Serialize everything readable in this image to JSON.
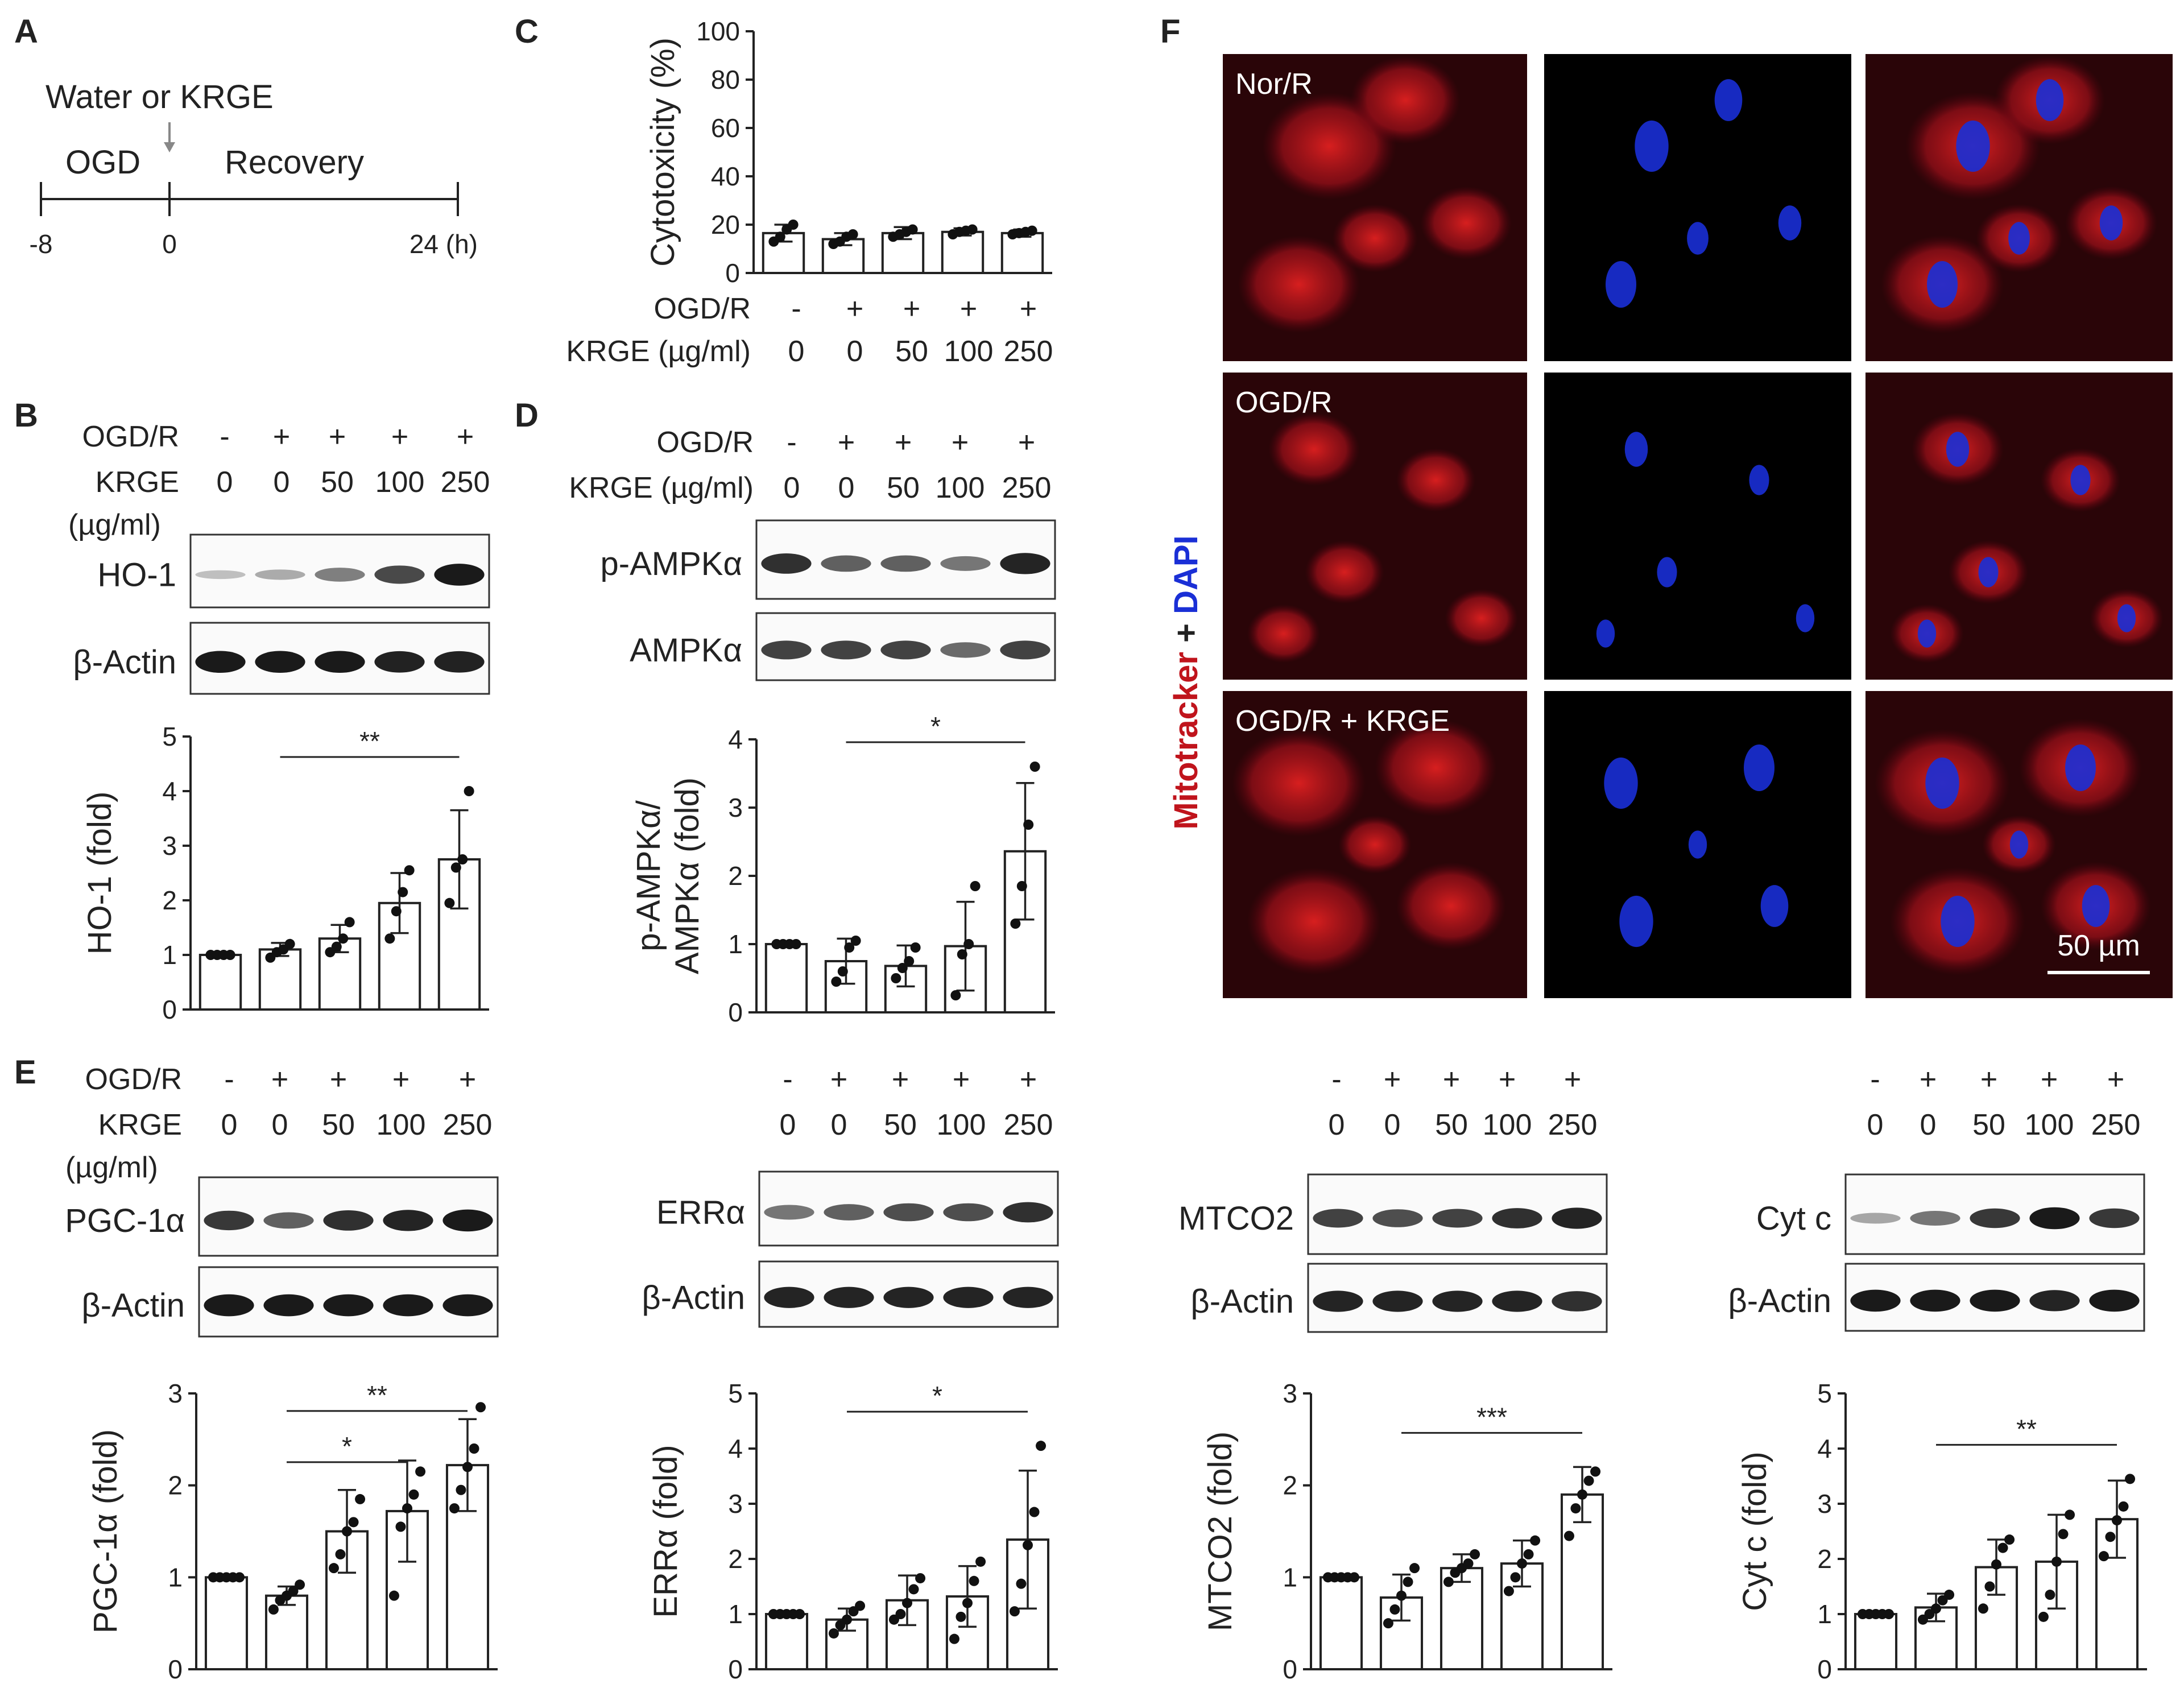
{
  "panel_labels": {
    "A": "A",
    "B": "B",
    "C": "C",
    "D": "D",
    "E": "E",
    "F": "F"
  },
  "timeline": {
    "treatment": "Water or KRGE",
    "phase1": "OGD",
    "phase2": "Recovery",
    "t_start": "-8",
    "t_zero": "0",
    "t_end": "24 (h)"
  },
  "treatment_labels": {
    "ogdr": "OGD/R",
    "krge": "KRGE",
    "unit": "(µg/ml)",
    "krge_with_unit": "KRGE (µg/ml)",
    "krge_wide": "KRGE  (µg/ml)",
    "ogdr_signs": [
      "-",
      "+",
      "+",
      "+",
      "+"
    ],
    "doses": [
      "0",
      "0",
      "50",
      "100",
      "250"
    ]
  },
  "blots": {
    "B": {
      "bands": [
        {
          "name": "HO-1",
          "intensity": [
            0.12,
            0.22,
            0.45,
            0.72,
            0.95
          ]
        },
        {
          "name": "β-Actin",
          "intensity": [
            0.95,
            0.95,
            0.95,
            0.92,
            0.92
          ]
        }
      ]
    },
    "D": {
      "bands": [
        {
          "name": "p-AMPKα",
          "intensity": [
            0.85,
            0.6,
            0.6,
            0.5,
            0.9
          ]
        },
        {
          "name": "AMPKα",
          "intensity": [
            0.75,
            0.75,
            0.75,
            0.55,
            0.75
          ]
        }
      ]
    },
    "E1": {
      "bands": [
        {
          "name": "PGC-1α",
          "intensity": [
            0.8,
            0.6,
            0.85,
            0.9,
            0.95
          ]
        },
        {
          "name": "β-Actin",
          "intensity": [
            0.95,
            0.95,
            0.95,
            0.95,
            0.95
          ]
        }
      ]
    },
    "E2": {
      "bands": [
        {
          "name": "ERRα",
          "intensity": [
            0.5,
            0.6,
            0.7,
            0.7,
            0.85
          ]
        },
        {
          "name": "β-Actin",
          "intensity": [
            0.9,
            0.9,
            0.9,
            0.9,
            0.9
          ]
        }
      ]
    },
    "E3": {
      "bands": [
        {
          "name": "MTCO2",
          "intensity": [
            0.75,
            0.7,
            0.75,
            0.85,
            0.9
          ]
        },
        {
          "name": "β-Actin",
          "intensity": [
            0.9,
            0.9,
            0.9,
            0.9,
            0.85
          ]
        }
      ]
    },
    "E4": {
      "bands": [
        {
          "name": "Cyt c",
          "intensity": [
            0.25,
            0.5,
            0.8,
            0.95,
            0.8
          ]
        },
        {
          "name": "β-Actin",
          "intensity": [
            0.95,
            0.95,
            0.95,
            0.9,
            0.95
          ]
        }
      ]
    }
  },
  "chart_data": [
    {
      "id": "C",
      "type": "bar",
      "ylabel": "Cytotoxicity (%)",
      "ylim": [
        0,
        100
      ],
      "yticks": [
        0,
        20,
        40,
        60,
        80,
        100
      ],
      "categories": [
        "0",
        "0",
        "50",
        "100",
        "250"
      ],
      "series": [
        {
          "values": [
            16.5,
            14,
            16.5,
            17,
            16.5
          ],
          "sd": [
            3.5,
            2.5,
            2.5,
            1.5,
            1.5
          ],
          "points": [
            [
              13,
              15,
              18,
              20
            ],
            [
              12,
              13,
              15,
              16
            ],
            [
              15,
              16,
              17,
              18
            ],
            [
              16,
              17,
              17.5,
              18
            ],
            [
              16,
              16.5,
              17,
              17.5
            ]
          ]
        }
      ],
      "significance": []
    },
    {
      "id": "B",
      "type": "bar",
      "ylabel": "HO-1 (fold)",
      "ylim": [
        0,
        5
      ],
      "yticks": [
        0,
        1,
        2,
        3,
        4,
        5
      ],
      "categories": [
        "0",
        "0",
        "50",
        "100",
        "250"
      ],
      "series": [
        {
          "values": [
            1.0,
            1.1,
            1.3,
            1.95,
            2.75
          ],
          "sd": [
            0,
            0.12,
            0.25,
            0.55,
            0.9
          ],
          "points": [
            [
              1,
              1,
              1,
              1
            ],
            [
              0.95,
              1.05,
              1.1,
              1.2
            ],
            [
              1.05,
              1.15,
              1.3,
              1.6
            ],
            [
              1.3,
              1.8,
              2.15,
              2.55
            ],
            [
              1.95,
              2.6,
              2.75,
              4.0
            ]
          ]
        }
      ],
      "significance": [
        {
          "from": 1,
          "to": 4,
          "label": "**"
        }
      ]
    },
    {
      "id": "D",
      "type": "bar",
      "ylabel": "p-AMPKα/ AMPKα (fold)",
      "ylim": [
        0,
        4
      ],
      "yticks": [
        0,
        1,
        2,
        3,
        4
      ],
      "categories": [
        "0",
        "0",
        "50",
        "100",
        "250"
      ],
      "series": [
        {
          "values": [
            1.0,
            0.75,
            0.68,
            0.97,
            2.36
          ],
          "sd": [
            0,
            0.33,
            0.3,
            0.65,
            1.0
          ],
          "points": [
            [
              1,
              1,
              1,
              1
            ],
            [
              0.45,
              0.6,
              0.95,
              1.05
            ],
            [
              0.5,
              0.65,
              0.75,
              0.95
            ],
            [
              0.25,
              0.85,
              1.0,
              1.85
            ],
            [
              1.3,
              1.85,
              2.75,
              3.6
            ]
          ]
        }
      ],
      "significance": [
        {
          "from": 1,
          "to": 4,
          "label": "*"
        }
      ]
    },
    {
      "id": "E1",
      "type": "bar",
      "ylabel": "PGC-1α (fold)",
      "ylim": [
        0,
        3
      ],
      "yticks": [
        0,
        1,
        2,
        3
      ],
      "categories": [
        "0",
        "0",
        "50",
        "100",
        "250"
      ],
      "series": [
        {
          "values": [
            1.0,
            0.8,
            1.5,
            1.72,
            2.22
          ],
          "sd": [
            0,
            0.1,
            0.45,
            0.55,
            0.5
          ],
          "points": [
            [
              1,
              1,
              1,
              1,
              1
            ],
            [
              0.65,
              0.75,
              0.8,
              0.85,
              0.92
            ],
            [
              1.1,
              1.25,
              1.5,
              1.6,
              1.85
            ],
            [
              0.8,
              1.55,
              1.75,
              1.9,
              2.15
            ],
            [
              1.75,
              1.95,
              2.2,
              2.4,
              2.85
            ]
          ]
        }
      ],
      "significance": [
        {
          "from": 1,
          "to": 3,
          "label": "*"
        },
        {
          "from": 1,
          "to": 4,
          "label": "**"
        }
      ]
    },
    {
      "id": "E2",
      "type": "bar",
      "ylabel": "ERRα (fold)",
      "ylim": [
        0,
        5
      ],
      "yticks": [
        0,
        1,
        2,
        3,
        4,
        5
      ],
      "categories": [
        "0",
        "0",
        "50",
        "100",
        "250"
      ],
      "series": [
        {
          "values": [
            1.0,
            0.9,
            1.25,
            1.32,
            2.35
          ],
          "sd": [
            0,
            0.2,
            0.45,
            0.55,
            1.25
          ],
          "points": [
            [
              1,
              1,
              1,
              1,
              1
            ],
            [
              0.65,
              0.8,
              0.9,
              1.05,
              1.15
            ],
            [
              0.9,
              1.0,
              1.2,
              1.45,
              1.65
            ],
            [
              0.55,
              0.95,
              1.2,
              1.6,
              1.95
            ],
            [
              1.05,
              1.55,
              2.25,
              2.85,
              4.05
            ]
          ]
        }
      ],
      "significance": [
        {
          "from": 1,
          "to": 4,
          "label": "*"
        }
      ]
    },
    {
      "id": "E3",
      "type": "bar",
      "ylabel": "MTCO2 (fold)",
      "ylim": [
        0,
        3
      ],
      "yticks": [
        0,
        1,
        2,
        3
      ],
      "categories": [
        "0",
        "0",
        "50",
        "100",
        "250"
      ],
      "series": [
        {
          "values": [
            1.0,
            0.78,
            1.1,
            1.15,
            1.9
          ],
          "sd": [
            0,
            0.25,
            0.15,
            0.25,
            0.3
          ],
          "points": [
            [
              1,
              1,
              1,
              1,
              1
            ],
            [
              0.5,
              0.65,
              0.8,
              0.95,
              1.1
            ],
            [
              0.95,
              1.05,
              1.1,
              1.15,
              1.25
            ],
            [
              0.85,
              1.0,
              1.15,
              1.25,
              1.4
            ],
            [
              1.45,
              1.75,
              1.9,
              2.05,
              2.15
            ]
          ]
        }
      ],
      "significance": [
        {
          "from": 1,
          "to": 4,
          "label": "***"
        }
      ]
    },
    {
      "id": "E4",
      "type": "bar",
      "ylabel": "Cyt c (fold)",
      "ylim": [
        0,
        5
      ],
      "yticks": [
        0,
        1,
        2,
        3,
        4,
        5
      ],
      "categories": [
        "0",
        "0",
        "50",
        "100",
        "250"
      ],
      "series": [
        {
          "values": [
            1.0,
            1.12,
            1.85,
            1.95,
            2.72
          ],
          "sd": [
            0,
            0.25,
            0.5,
            0.85,
            0.7
          ],
          "points": [
            [
              1,
              1,
              1,
              1,
              1
            ],
            [
              0.9,
              1.0,
              1.1,
              1.25,
              1.35
            ],
            [
              1.1,
              1.5,
              1.9,
              2.2,
              2.35
            ],
            [
              0.95,
              1.35,
              1.95,
              2.45,
              2.8
            ],
            [
              2.05,
              2.4,
              2.7,
              2.95,
              3.45
            ]
          ]
        }
      ],
      "significance": [
        {
          "from": 1,
          "to": 4,
          "label": "**"
        }
      ]
    }
  ],
  "microscopy": {
    "axis_label_red": "Mitotracker",
    "axis_label_plus": " + ",
    "axis_label_blue": "DAPI",
    "rows": [
      "Nor/R",
      "OGD/R",
      "OGD/R + KRGE"
    ],
    "scale_bar": "50 µm",
    "colors": {
      "red": "#c0141c",
      "blue": "#1a2fd6",
      "bg": "#000000"
    }
  }
}
